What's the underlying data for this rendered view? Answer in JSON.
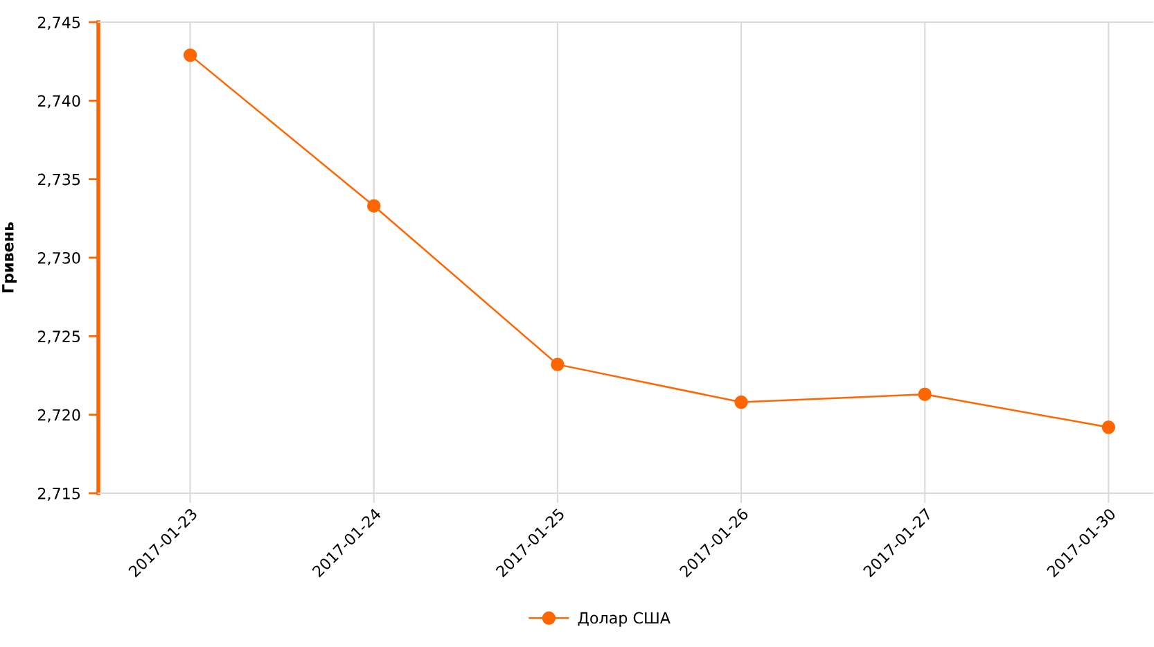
{
  "chart_data": {
    "type": "line",
    "ylabel": "Гривень",
    "categories": [
      "2017-01-23",
      "2017-01-24",
      "2017-01-25",
      "2017-01-26",
      "2017-01-27",
      "2017-01-30"
    ],
    "series": [
      {
        "name": "Долар США",
        "color": "#ff6600",
        "values": [
          2742.9,
          2733.3,
          2723.2,
          2720.8,
          2721.3,
          2719.2
        ]
      }
    ],
    "ylim": [
      2715,
      2745
    ],
    "yticks": [
      {
        "value": 2715,
        "label": "2,715"
      },
      {
        "value": 2720,
        "label": "2,720"
      },
      {
        "value": 2725,
        "label": "2,725"
      },
      {
        "value": 2730,
        "label": "2,730"
      },
      {
        "value": 2735,
        "label": "2,735"
      },
      {
        "value": 2740,
        "label": "2,740"
      },
      {
        "value": 2745,
        "label": "2,745"
      }
    ],
    "grid": "x",
    "legend": "bottom",
    "marker": "circle",
    "line_style": "solid"
  }
}
